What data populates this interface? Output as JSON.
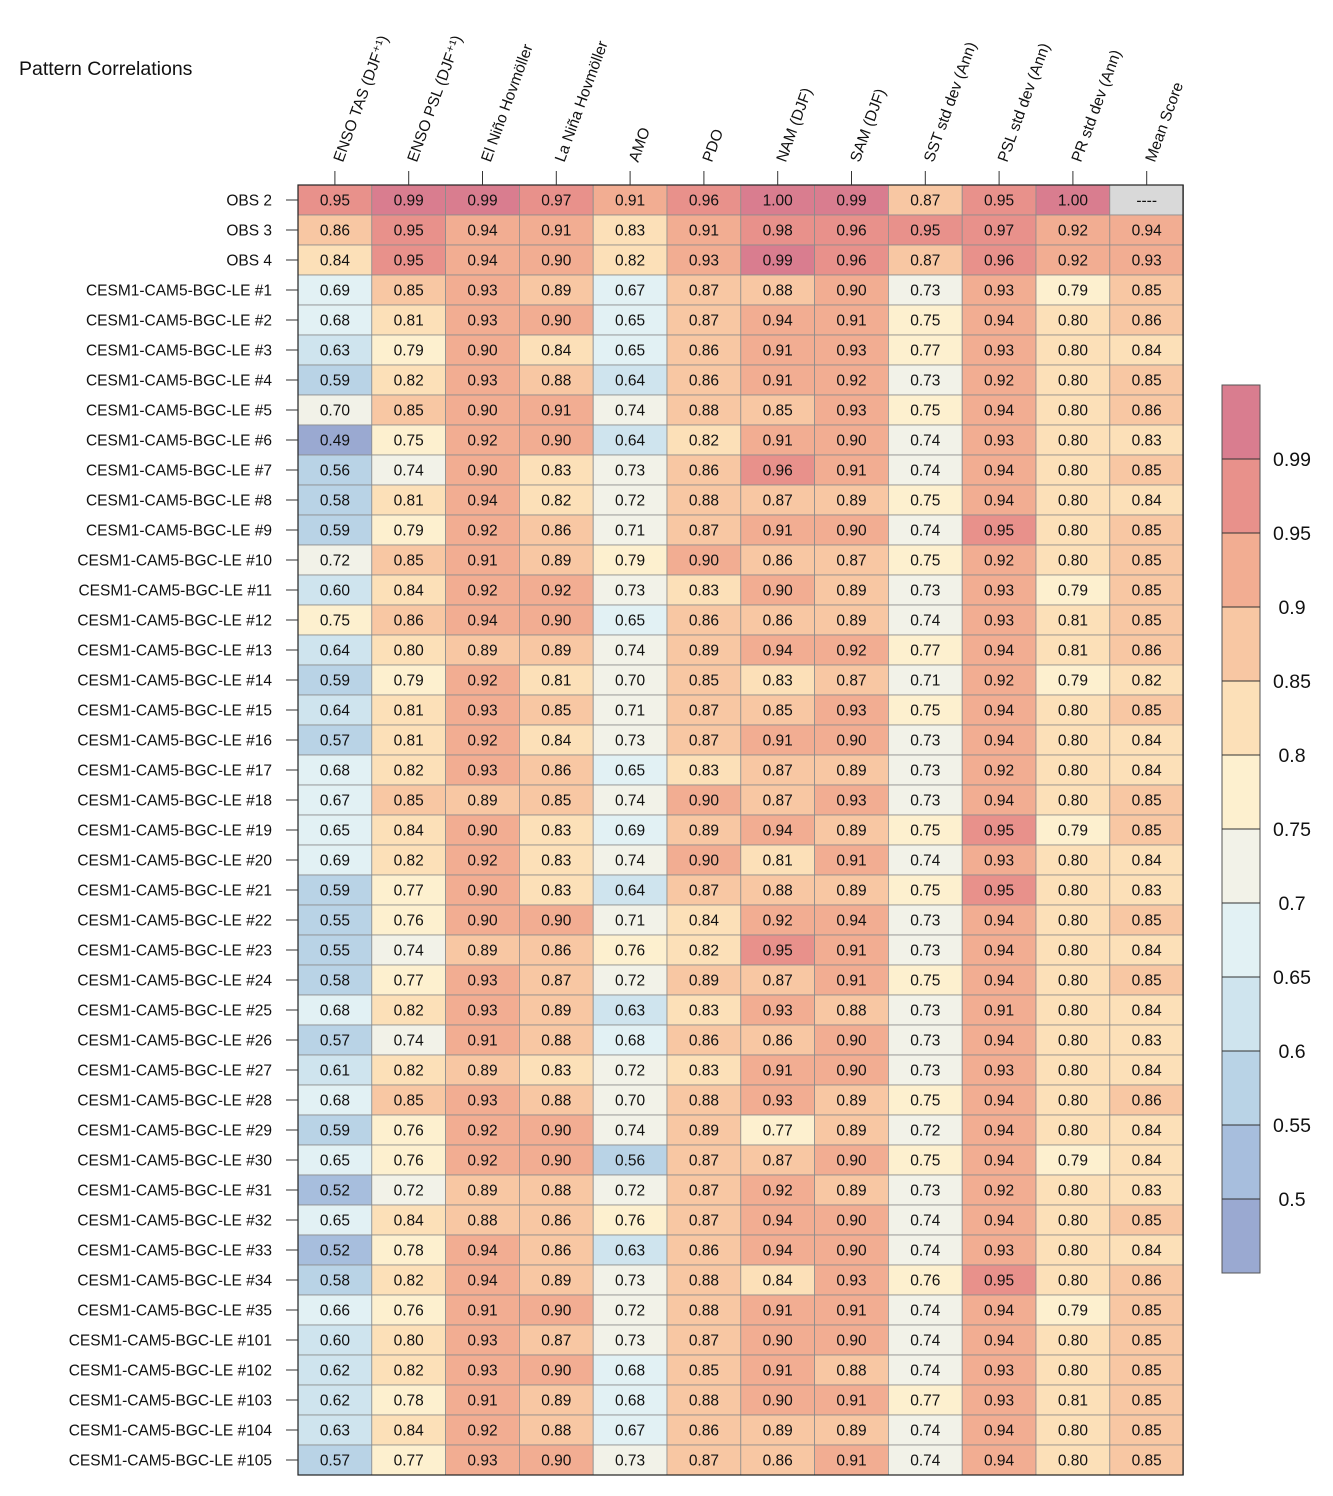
{
  "chart_data": {
    "type": "heatmap",
    "title": "Pattern Correlations",
    "columns": [
      "ENSO TAS (DJF⁺¹)",
      "ENSO PSL (DJF⁺¹)",
      "El Niño Hovmöller",
      "La Niña Hovmöller",
      "AMO",
      "PDO",
      "NAM (DJF)",
      "SAM (DJF)",
      "SST std dev (Ann)",
      "PSL std dev (Ann)",
      "PR std dev (Ann)",
      "Mean Score"
    ],
    "rows": [
      "OBS 2",
      "OBS 3",
      "OBS 4",
      "CESM1-CAM5-BGC-LE #1",
      "CESM1-CAM5-BGC-LE #2",
      "CESM1-CAM5-BGC-LE #3",
      "CESM1-CAM5-BGC-LE #4",
      "CESM1-CAM5-BGC-LE #5",
      "CESM1-CAM5-BGC-LE #6",
      "CESM1-CAM5-BGC-LE #7",
      "CESM1-CAM5-BGC-LE #8",
      "CESM1-CAM5-BGC-LE #9",
      "CESM1-CAM5-BGC-LE #10",
      "CESM1-CAM5-BGC-LE #11",
      "CESM1-CAM5-BGC-LE #12",
      "CESM1-CAM5-BGC-LE #13",
      "CESM1-CAM5-BGC-LE #14",
      "CESM1-CAM5-BGC-LE #15",
      "CESM1-CAM5-BGC-LE #16",
      "CESM1-CAM5-BGC-LE #17",
      "CESM1-CAM5-BGC-LE #18",
      "CESM1-CAM5-BGC-LE #19",
      "CESM1-CAM5-BGC-LE #20",
      "CESM1-CAM5-BGC-LE #21",
      "CESM1-CAM5-BGC-LE #22",
      "CESM1-CAM5-BGC-LE #23",
      "CESM1-CAM5-BGC-LE #24",
      "CESM1-CAM5-BGC-LE #25",
      "CESM1-CAM5-BGC-LE #26",
      "CESM1-CAM5-BGC-LE #27",
      "CESM1-CAM5-BGC-LE #28",
      "CESM1-CAM5-BGC-LE #29",
      "CESM1-CAM5-BGC-LE #30",
      "CESM1-CAM5-BGC-LE #31",
      "CESM1-CAM5-BGC-LE #32",
      "CESM1-CAM5-BGC-LE #33",
      "CESM1-CAM5-BGC-LE #34",
      "CESM1-CAM5-BGC-LE #35",
      "CESM1-CAM5-BGC-LE #101",
      "CESM1-CAM5-BGC-LE #102",
      "CESM1-CAM5-BGC-LE #103",
      "CESM1-CAM5-BGC-LE #104",
      "CESM1-CAM5-BGC-LE #105"
    ],
    "values": [
      [
        "0.95",
        "0.99",
        "0.99",
        "0.97",
        "0.91",
        "0.96",
        "1.00",
        "0.99",
        "0.87",
        "0.95",
        "1.00",
        "----"
      ],
      [
        "0.86",
        "0.95",
        "0.94",
        "0.91",
        "0.83",
        "0.91",
        "0.98",
        "0.96",
        "0.95",
        "0.97",
        "0.92",
        "0.94"
      ],
      [
        "0.84",
        "0.95",
        "0.94",
        "0.90",
        "0.82",
        "0.93",
        "0.99",
        "0.96",
        "0.87",
        "0.96",
        "0.92",
        "0.93"
      ],
      [
        "0.69",
        "0.85",
        "0.93",
        "0.89",
        "0.67",
        "0.87",
        "0.88",
        "0.90",
        "0.73",
        "0.93",
        "0.79",
        "0.85"
      ],
      [
        "0.68",
        "0.81",
        "0.93",
        "0.90",
        "0.65",
        "0.87",
        "0.94",
        "0.91",
        "0.75",
        "0.94",
        "0.80",
        "0.86"
      ],
      [
        "0.63",
        "0.79",
        "0.90",
        "0.84",
        "0.65",
        "0.86",
        "0.91",
        "0.93",
        "0.77",
        "0.93",
        "0.80",
        "0.84"
      ],
      [
        "0.59",
        "0.82",
        "0.93",
        "0.88",
        "0.64",
        "0.86",
        "0.91",
        "0.92",
        "0.73",
        "0.92",
        "0.80",
        "0.85"
      ],
      [
        "0.70",
        "0.85",
        "0.90",
        "0.91",
        "0.74",
        "0.88",
        "0.85",
        "0.93",
        "0.75",
        "0.94",
        "0.80",
        "0.86"
      ],
      [
        "0.49",
        "0.75",
        "0.92",
        "0.90",
        "0.64",
        "0.82",
        "0.91",
        "0.90",
        "0.74",
        "0.93",
        "0.80",
        "0.83"
      ],
      [
        "0.56",
        "0.74",
        "0.90",
        "0.83",
        "0.73",
        "0.86",
        "0.96",
        "0.91",
        "0.74",
        "0.94",
        "0.80",
        "0.85"
      ],
      [
        "0.58",
        "0.81",
        "0.94",
        "0.82",
        "0.72",
        "0.88",
        "0.87",
        "0.89",
        "0.75",
        "0.94",
        "0.80",
        "0.84"
      ],
      [
        "0.59",
        "0.79",
        "0.92",
        "0.86",
        "0.71",
        "0.87",
        "0.91",
        "0.90",
        "0.74",
        "0.95",
        "0.80",
        "0.85"
      ],
      [
        "0.72",
        "0.85",
        "0.91",
        "0.89",
        "0.79",
        "0.90",
        "0.86",
        "0.87",
        "0.75",
        "0.92",
        "0.80",
        "0.85"
      ],
      [
        "0.60",
        "0.84",
        "0.92",
        "0.92",
        "0.73",
        "0.83",
        "0.90",
        "0.89",
        "0.73",
        "0.93",
        "0.79",
        "0.85"
      ],
      [
        "0.75",
        "0.86",
        "0.94",
        "0.90",
        "0.65",
        "0.86",
        "0.86",
        "0.89",
        "0.74",
        "0.93",
        "0.81",
        "0.85"
      ],
      [
        "0.64",
        "0.80",
        "0.89",
        "0.89",
        "0.74",
        "0.89",
        "0.94",
        "0.92",
        "0.77",
        "0.94",
        "0.81",
        "0.86"
      ],
      [
        "0.59",
        "0.79",
        "0.92",
        "0.81",
        "0.70",
        "0.85",
        "0.83",
        "0.87",
        "0.71",
        "0.92",
        "0.79",
        "0.82"
      ],
      [
        "0.64",
        "0.81",
        "0.93",
        "0.85",
        "0.71",
        "0.87",
        "0.85",
        "0.93",
        "0.75",
        "0.94",
        "0.80",
        "0.85"
      ],
      [
        "0.57",
        "0.81",
        "0.92",
        "0.84",
        "0.73",
        "0.87",
        "0.91",
        "0.90",
        "0.73",
        "0.94",
        "0.80",
        "0.84"
      ],
      [
        "0.68",
        "0.82",
        "0.93",
        "0.86",
        "0.65",
        "0.83",
        "0.87",
        "0.89",
        "0.73",
        "0.92",
        "0.80",
        "0.84"
      ],
      [
        "0.67",
        "0.85",
        "0.89",
        "0.85",
        "0.74",
        "0.90",
        "0.87",
        "0.93",
        "0.73",
        "0.94",
        "0.80",
        "0.85"
      ],
      [
        "0.65",
        "0.84",
        "0.90",
        "0.83",
        "0.69",
        "0.89",
        "0.94",
        "0.89",
        "0.75",
        "0.95",
        "0.79",
        "0.85"
      ],
      [
        "0.69",
        "0.82",
        "0.92",
        "0.83",
        "0.74",
        "0.90",
        "0.81",
        "0.91",
        "0.74",
        "0.93",
        "0.80",
        "0.84"
      ],
      [
        "0.59",
        "0.77",
        "0.90",
        "0.83",
        "0.64",
        "0.87",
        "0.88",
        "0.89",
        "0.75",
        "0.95",
        "0.80",
        "0.83"
      ],
      [
        "0.55",
        "0.76",
        "0.90",
        "0.90",
        "0.71",
        "0.84",
        "0.92",
        "0.94",
        "0.73",
        "0.94",
        "0.80",
        "0.85"
      ],
      [
        "0.55",
        "0.74",
        "0.89",
        "0.86",
        "0.76",
        "0.82",
        "0.95",
        "0.91",
        "0.73",
        "0.94",
        "0.80",
        "0.84"
      ],
      [
        "0.58",
        "0.77",
        "0.93",
        "0.87",
        "0.72",
        "0.89",
        "0.87",
        "0.91",
        "0.75",
        "0.94",
        "0.80",
        "0.85"
      ],
      [
        "0.68",
        "0.82",
        "0.93",
        "0.89",
        "0.63",
        "0.83",
        "0.93",
        "0.88",
        "0.73",
        "0.91",
        "0.80",
        "0.84"
      ],
      [
        "0.57",
        "0.74",
        "0.91",
        "0.88",
        "0.68",
        "0.86",
        "0.86",
        "0.90",
        "0.73",
        "0.94",
        "0.80",
        "0.83"
      ],
      [
        "0.61",
        "0.82",
        "0.89",
        "0.83",
        "0.72",
        "0.83",
        "0.91",
        "0.90",
        "0.73",
        "0.93",
        "0.80",
        "0.84"
      ],
      [
        "0.68",
        "0.85",
        "0.93",
        "0.88",
        "0.70",
        "0.88",
        "0.93",
        "0.89",
        "0.75",
        "0.94",
        "0.80",
        "0.86"
      ],
      [
        "0.59",
        "0.76",
        "0.92",
        "0.90",
        "0.74",
        "0.89",
        "0.77",
        "0.89",
        "0.72",
        "0.94",
        "0.80",
        "0.84"
      ],
      [
        "0.65",
        "0.76",
        "0.92",
        "0.90",
        "0.56",
        "0.87",
        "0.87",
        "0.90",
        "0.75",
        "0.94",
        "0.79",
        "0.84"
      ],
      [
        "0.52",
        "0.72",
        "0.89",
        "0.88",
        "0.72",
        "0.87",
        "0.92",
        "0.89",
        "0.73",
        "0.92",
        "0.80",
        "0.83"
      ],
      [
        "0.65",
        "0.84",
        "0.88",
        "0.86",
        "0.76",
        "0.87",
        "0.94",
        "0.90",
        "0.74",
        "0.94",
        "0.80",
        "0.85"
      ],
      [
        "0.52",
        "0.78",
        "0.94",
        "0.86",
        "0.63",
        "0.86",
        "0.94",
        "0.90",
        "0.74",
        "0.93",
        "0.80",
        "0.84"
      ],
      [
        "0.58",
        "0.82",
        "0.94",
        "0.89",
        "0.73",
        "0.88",
        "0.84",
        "0.93",
        "0.76",
        "0.95",
        "0.80",
        "0.86"
      ],
      [
        "0.66",
        "0.76",
        "0.91",
        "0.90",
        "0.72",
        "0.88",
        "0.91",
        "0.91",
        "0.74",
        "0.94",
        "0.79",
        "0.85"
      ],
      [
        "0.60",
        "0.80",
        "0.93",
        "0.87",
        "0.73",
        "0.87",
        "0.90",
        "0.90",
        "0.74",
        "0.94",
        "0.80",
        "0.85"
      ],
      [
        "0.62",
        "0.82",
        "0.93",
        "0.90",
        "0.68",
        "0.85",
        "0.91",
        "0.88",
        "0.74",
        "0.93",
        "0.80",
        "0.85"
      ],
      [
        "0.62",
        "0.78",
        "0.91",
        "0.89",
        "0.68",
        "0.88",
        "0.90",
        "0.91",
        "0.77",
        "0.93",
        "0.81",
        "0.85"
      ],
      [
        "0.63",
        "0.84",
        "0.92",
        "0.88",
        "0.67",
        "0.86",
        "0.89",
        "0.89",
        "0.74",
        "0.94",
        "0.80",
        "0.85"
      ],
      [
        "0.57",
        "0.77",
        "0.93",
        "0.90",
        "0.73",
        "0.87",
        "0.86",
        "0.91",
        "0.74",
        "0.94",
        "0.80",
        "0.85"
      ]
    ],
    "colorbar": {
      "ticks": [
        "0.5",
        "0.55",
        "0.6",
        "0.65",
        "0.7",
        "0.75",
        "0.8",
        "0.85",
        "0.9",
        "0.95",
        "0.99"
      ],
      "levels": [
        0.5,
        0.55,
        0.6,
        0.65,
        0.7,
        0.75,
        0.8,
        0.85,
        0.9,
        0.95,
        0.99
      ],
      "colors": [
        "#9aa9d1",
        "#a7bedd",
        "#b9d3e6",
        "#cfe4ee",
        "#e2f1f4",
        "#f2f2e8",
        "#fdf0cf",
        "#fce0b8",
        "#f8c7a3",
        "#f2ad92",
        "#e8918b",
        "#d97d8f"
      ],
      "missing_color": "#d9d9d9"
    }
  }
}
